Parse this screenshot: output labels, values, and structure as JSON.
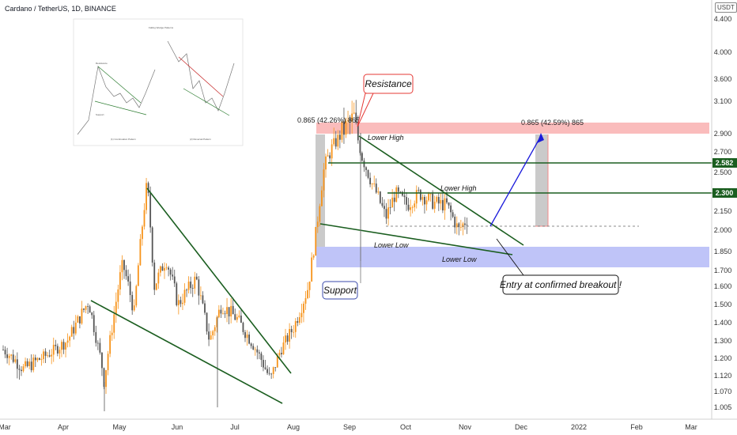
{
  "header": {
    "title": "Cardano / TetherUS, 1D, BINANCE",
    "currency": "USDT"
  },
  "chart_data": {
    "type": "candlestick",
    "y_ticks": [
      "4.400",
      "4.000",
      "3.600",
      "3.100",
      "2.900",
      "2.700",
      "2.500",
      "2.300",
      "2.150",
      "2.000",
      "1.850",
      "1.700",
      "1.600",
      "1.500",
      "1.400",
      "1.300",
      "1.200",
      "1.120",
      "1.070",
      "1.005"
    ],
    "x_ticks": [
      "Mar",
      "Apr",
      "May",
      "Jun",
      "Jul",
      "Aug",
      "Sep",
      "Oct",
      "Nov",
      "Dec",
      "2022",
      "Feb",
      "Mar"
    ],
    "price_labels": [
      {
        "value": "2.582",
        "color": "#1b5e20"
      },
      {
        "value": "2.300",
        "color": "#1b5e20"
      }
    ],
    "measurements": [
      "0.865 (42.26%) 865",
      "0.865 (42.59%) 865"
    ],
    "annotations": [
      "Lower High",
      "Lower High",
      "Lower Low",
      "Lower Low"
    ],
    "callouts": [
      "Resistance",
      "Support",
      "Entry at confirmed breakout !"
    ],
    "colors": {
      "up": "#f7931a",
      "down": "#555555",
      "trendline": "#1b5e20",
      "resistance_zone": "#f8a5a5",
      "support_zone": "#aab0f5",
      "arrow": "#1a1adb"
    },
    "inset": {
      "title": "Falling Wedge Patterns",
      "captions": [
        "(1) Continuation Pattern",
        "(2) Reversal Pattern"
      ],
      "labels": [
        "Resistance",
        "Support"
      ]
    }
  }
}
